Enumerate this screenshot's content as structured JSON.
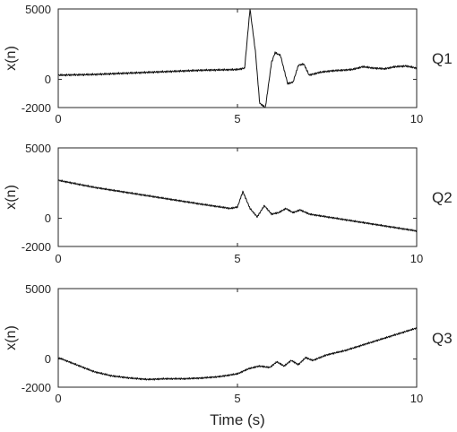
{
  "figure": {
    "xlabel": "Time (s)",
    "ylabel": "x(n)"
  },
  "chart_data": [
    {
      "type": "line",
      "panel_label": "Q1",
      "ylabel": "x(n)",
      "xlabel": "",
      "xlim": [
        0,
        10
      ],
      "ylim": [
        -2000,
        5000
      ],
      "xticks": [
        "0",
        "5",
        "10"
      ],
      "yticks": [
        "5000",
        "0",
        "-2000"
      ],
      "series": [
        {
          "values": {
            "x": [
              0,
              1,
              2,
              3,
              4,
              5,
              5.2,
              5.35,
              5.5,
              5.62,
              5.78,
              5.95,
              6.05,
              6.2,
              6.4,
              6.55,
              6.7,
              6.85,
              7.0,
              7.3,
              7.6,
              7.9,
              8.2,
              8.5,
              8.8,
              9.1,
              9.4,
              9.7,
              10
            ],
            "y": [
              300,
              350,
              450,
              550,
              650,
              700,
              800,
              5000,
              2000,
              -1700,
              -2000,
              1200,
              1900,
              1700,
              -300,
              -200,
              1000,
              1100,
              300,
              500,
              600,
              650,
              700,
              900,
              800,
              750,
              900,
              950,
              800
            ]
          },
          "noise": 90
        }
      ]
    },
    {
      "type": "line",
      "panel_label": "Q2",
      "ylabel": "x(n)",
      "xlabel": "",
      "xlim": [
        0,
        10
      ],
      "ylim": [
        -2000,
        5000
      ],
      "xticks": [
        "0",
        "5",
        "10"
      ],
      "yticks": [
        "5000",
        "0",
        "-2000"
      ],
      "series": [
        {
          "values": {
            "x": [
              0,
              1,
              2,
              3,
              4,
              4.8,
              5.0,
              5.15,
              5.35,
              5.55,
              5.75,
              5.95,
              6.15,
              6.35,
              6.55,
              6.75,
              7.0,
              7.5,
              8,
              8.5,
              9,
              9.5,
              10
            ],
            "y": [
              2700,
              2200,
              1800,
              1400,
              1000,
              700,
              800,
              1900,
              700,
              100,
              900,
              300,
              400,
              700,
              400,
              600,
              300,
              100,
              -100,
              -300,
              -500,
              -700,
              -900
            ]
          },
          "noise": 80
        }
      ]
    },
    {
      "type": "line",
      "panel_label": "Q3",
      "ylabel": "x(n)",
      "xlabel": "Time (s)",
      "xlim": [
        0,
        10
      ],
      "ylim": [
        -2000,
        5000
      ],
      "xticks": [
        "0",
        "5",
        "10"
      ],
      "yticks": [
        "5000",
        "0",
        "-2000"
      ],
      "series": [
        {
          "values": {
            "x": [
              0,
              0.5,
              1,
              1.5,
              2,
              2.5,
              3,
              3.5,
              4,
              4.5,
              5,
              5.3,
              5.6,
              5.9,
              6.1,
              6.3,
              6.5,
              6.7,
              6.9,
              7.1,
              7.5,
              8,
              8.5,
              9,
              9.5,
              10
            ],
            "y": [
              100,
              -400,
              -900,
              -1200,
              -1350,
              -1450,
              -1400,
              -1400,
              -1350,
              -1250,
              -1050,
              -700,
              -500,
              -600,
              -200,
              -500,
              -100,
              -400,
              100,
              -100,
              300,
              600,
              1000,
              1400,
              1800,
              2200
            ]
          },
          "noise": 80
        }
      ]
    }
  ]
}
